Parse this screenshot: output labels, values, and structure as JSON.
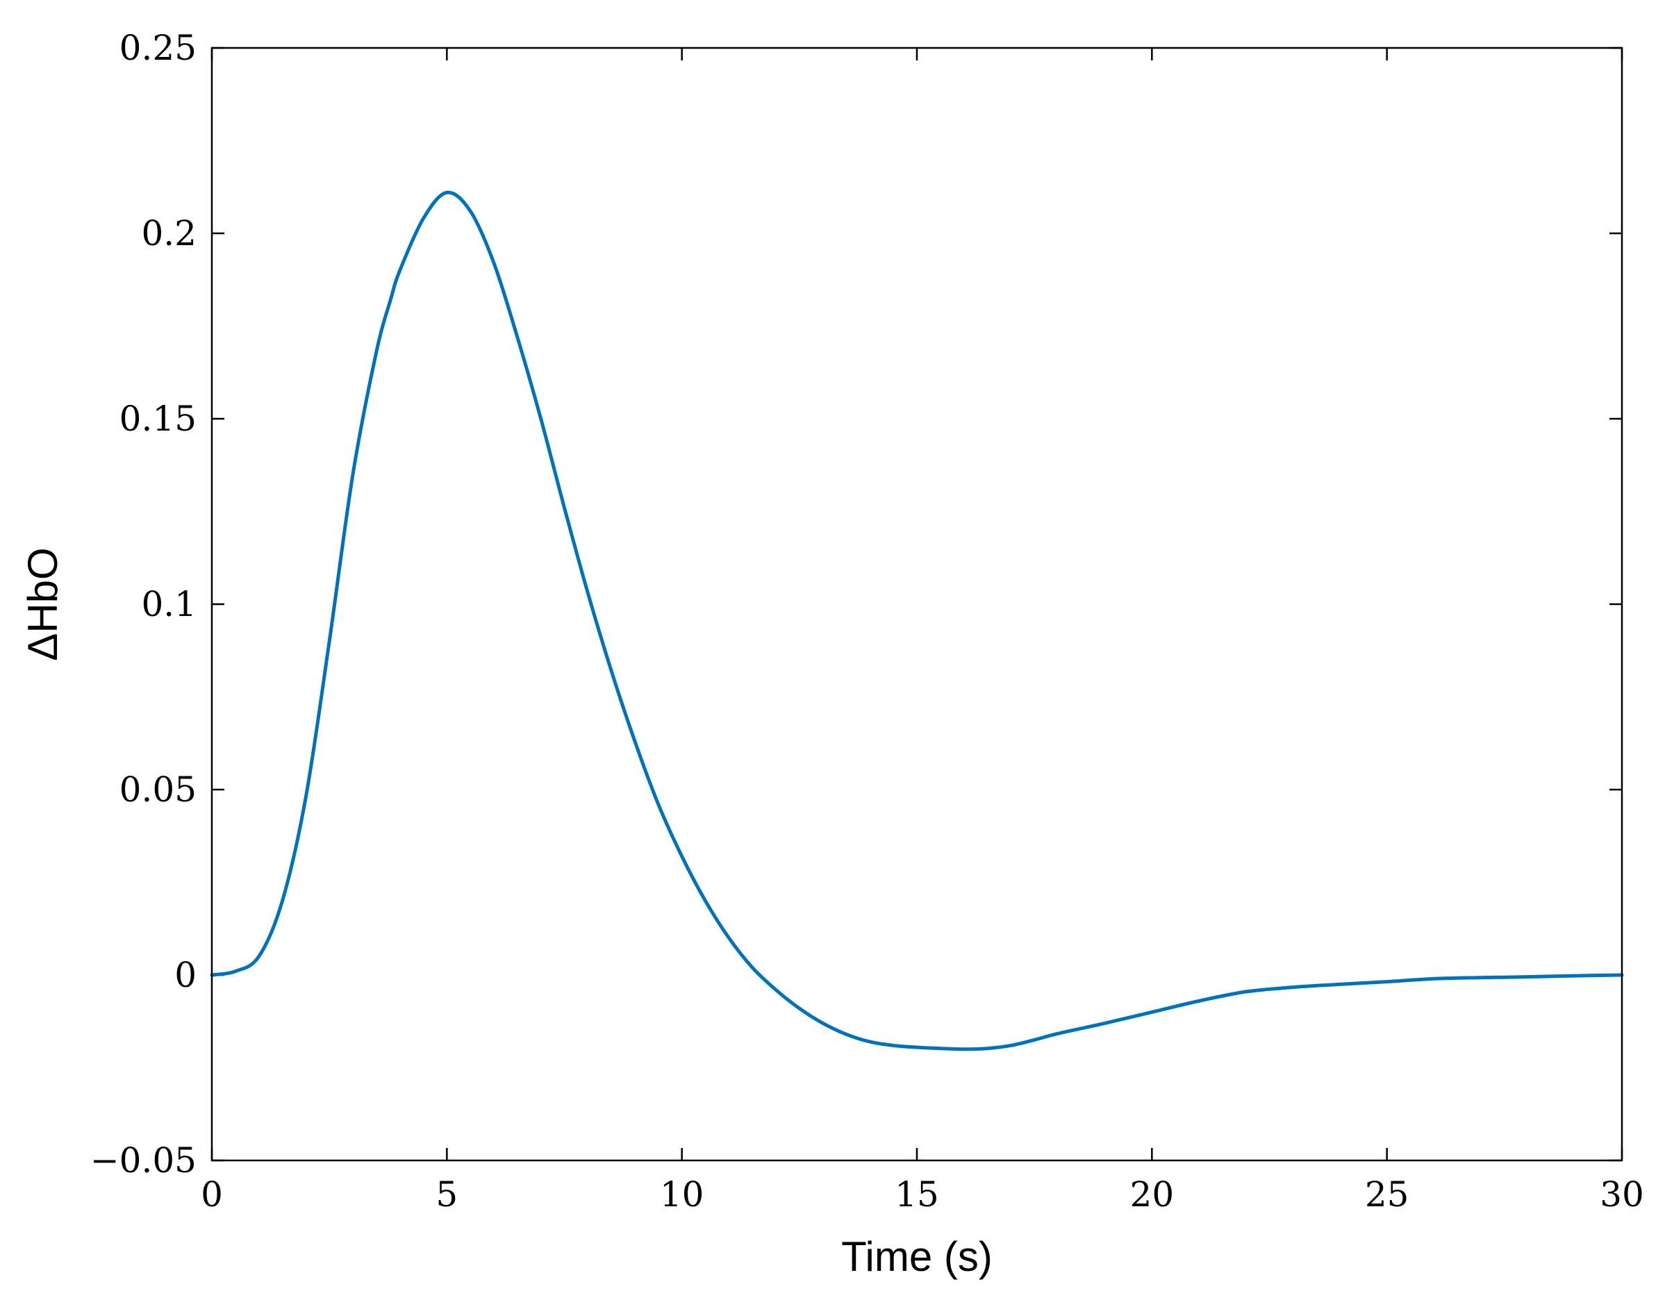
{
  "chart_data": {
    "type": "line",
    "title": "",
    "xlabel": "Time (s)",
    "ylabel": "ΔHbO",
    "xlim": [
      0,
      30
    ],
    "ylim": [
      -0.05,
      0.25
    ],
    "x_ticks": [
      0,
      5,
      10,
      15,
      20,
      25,
      30
    ],
    "x_tick_labels": [
      "0",
      "5",
      "10",
      "15",
      "20",
      "25",
      "30"
    ],
    "y_ticks": [
      -0.05,
      0,
      0.05,
      0.1,
      0.15,
      0.2,
      0.25
    ],
    "y_tick_labels": [
      "−0.05",
      "0",
      "0.05",
      "0.1",
      "0.15",
      "0.2",
      "0.25"
    ],
    "grid": false,
    "box": true,
    "line_color": "#0072BD",
    "series": [
      {
        "x": [
          0,
          0.5,
          1,
          1.5,
          2,
          2.5,
          3,
          3.5,
          3.8,
          4,
          4.5,
          5,
          5.5,
          6,
          6.5,
          7,
          7.5,
          8,
          8.5,
          9,
          9.5,
          10,
          10.5,
          11,
          11.5,
          12,
          12.5,
          13,
          13.5,
          14,
          14.5,
          15,
          15.5,
          16,
          16.5,
          17,
          17.5,
          18,
          19,
          20,
          21,
          22,
          23,
          24,
          25,
          26,
          27,
          28,
          29,
          30
        ],
        "y": [
          0,
          0.001,
          0.005,
          0.02,
          0.048,
          0.09,
          0.135,
          0.168,
          0.182,
          0.19,
          0.204,
          0.211,
          0.206,
          0.192,
          0.172,
          0.15,
          0.126,
          0.103,
          0.082,
          0.063,
          0.046,
          0.032,
          0.02,
          0.01,
          0.002,
          -0.004,
          -0.009,
          -0.013,
          -0.016,
          -0.018,
          -0.019,
          -0.0195,
          -0.0198,
          -0.02,
          -0.0198,
          -0.019,
          -0.0175,
          -0.0158,
          -0.013,
          -0.01,
          -0.007,
          -0.0045,
          -0.0033,
          -0.0025,
          -0.0018,
          -0.001,
          -0.0007,
          -0.0005,
          -0.0002,
          0
        ]
      }
    ]
  }
}
